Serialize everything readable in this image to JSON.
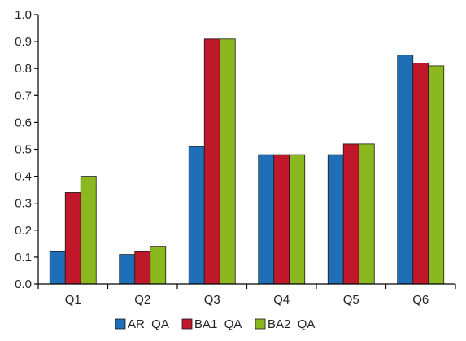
{
  "chart_data": {
    "type": "bar",
    "title": "",
    "xlabel": "",
    "ylabel": "",
    "categories": [
      "Q1",
      "Q2",
      "Q3",
      "Q4",
      "Q5",
      "Q6"
    ],
    "series": [
      {
        "name": "AR_QA",
        "color": "#1f6fb8",
        "values": [
          0.12,
          0.11,
          0.51,
          0.48,
          0.48,
          0.85
        ]
      },
      {
        "name": "BA1_QA",
        "color": "#c0172b",
        "values": [
          0.34,
          0.12,
          0.91,
          0.48,
          0.52,
          0.82
        ]
      },
      {
        "name": "BA2_QA",
        "color": "#8ab81e",
        "values": [
          0.4,
          0.14,
          0.91,
          0.48,
          0.52,
          0.81
        ]
      }
    ],
    "ylim": [
      0,
      1.0
    ],
    "yticks": [
      "0.0",
      "0.1",
      "0.2",
      "0.3",
      "0.4",
      "0.5",
      "0.6",
      "0.7",
      "0.8",
      "0.9",
      "1.0"
    ],
    "grid": false,
    "legend": "bottom-center"
  }
}
